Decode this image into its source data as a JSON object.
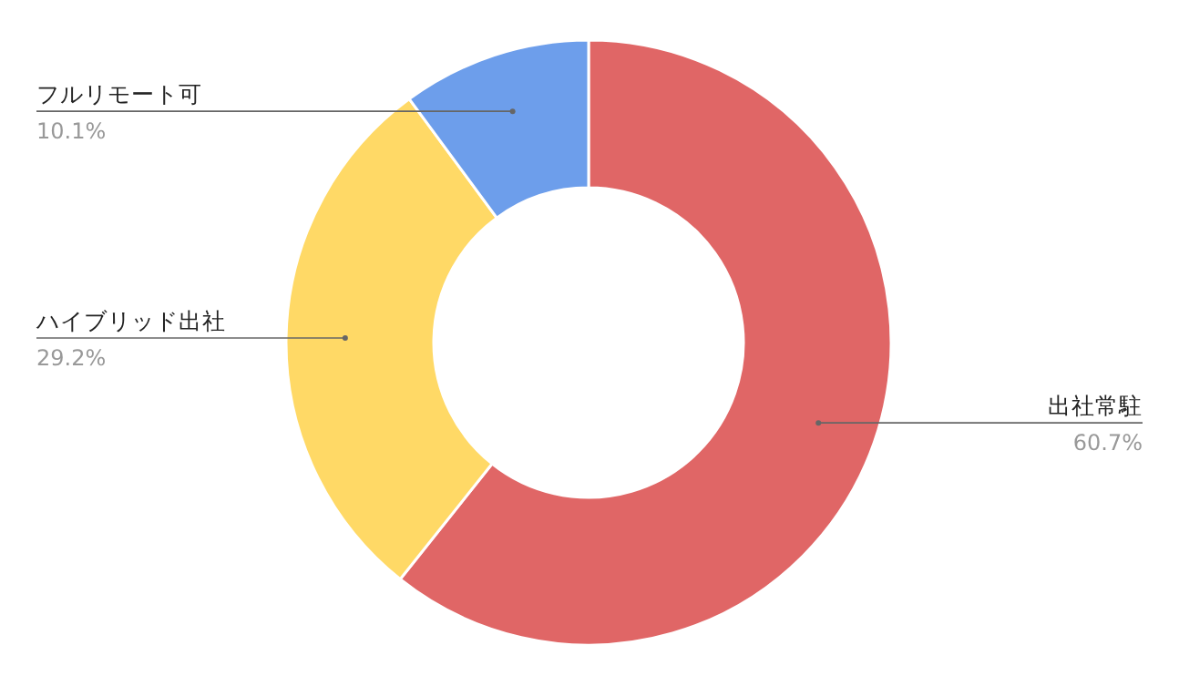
{
  "chart_data": {
    "type": "donut",
    "categories": [
      "出社常駐",
      "ハイブリッド出社",
      "フルリモート可"
    ],
    "values": [
      60.7,
      29.2,
      10.1
    ],
    "value_labels": [
      "60.7%",
      "29.2%",
      "10.1%"
    ],
    "colors": [
      "#e06666",
      "#ffd966",
      "#6d9eeb"
    ],
    "legend": false
  }
}
